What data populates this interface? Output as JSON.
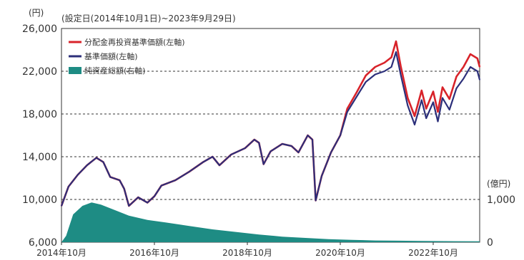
{
  "chart_data": {
    "type": "line",
    "subtitle": "(設定日(2014年10月1日)~2023年9月29日)",
    "left_axis": {
      "unit_label": "(円)",
      "ylim": [
        6000,
        26000
      ],
      "ticks": [
        6000,
        10000,
        14000,
        18000,
        22000,
        26000
      ],
      "tick_labels": [
        "6,000",
        "10,000",
        "14,000",
        "18,000",
        "22,000",
        "26,000"
      ]
    },
    "right_axis": {
      "unit_label": "(億円)",
      "ticks": [
        0,
        1000
      ],
      "tick_labels": [
        "0",
        "1,000"
      ]
    },
    "x_axis": {
      "tick_labels": [
        "2014年10月",
        "2016年10月",
        "2018年10月",
        "2020年10月",
        "2022年10月"
      ],
      "tick_x": [
        2014.75,
        2016.75,
        2018.75,
        2020.75,
        2022.75
      ],
      "xlim": [
        2014.75,
        2023.75
      ]
    },
    "grid": "horizontal dashed at 10,000 / 14,000 / 18,000 / 22,000",
    "legend_placement": "top-left",
    "series": [
      {
        "name": "分配金再投資基準価額(左軸)",
        "axis": "left",
        "color": "#d8232a",
        "points": [
          [
            2014.75,
            9400
          ],
          [
            2014.9,
            11200
          ],
          [
            2015.1,
            12300
          ],
          [
            2015.3,
            13200
          ],
          [
            2015.5,
            13900
          ],
          [
            2015.65,
            13500
          ],
          [
            2015.8,
            12100
          ],
          [
            2016.0,
            11800
          ],
          [
            2016.1,
            11000
          ],
          [
            2016.2,
            9400
          ],
          [
            2016.4,
            10200
          ],
          [
            2016.6,
            9700
          ],
          [
            2016.75,
            10300
          ],
          [
            2016.9,
            11300
          ],
          [
            2017.2,
            11800
          ],
          [
            2017.5,
            12600
          ],
          [
            2017.8,
            13500
          ],
          [
            2018.0,
            14000
          ],
          [
            2018.15,
            13200
          ],
          [
            2018.4,
            14200
          ],
          [
            2018.7,
            14800
          ],
          [
            2018.9,
            15600
          ],
          [
            2019.0,
            15300
          ],
          [
            2019.1,
            13300
          ],
          [
            2019.25,
            14500
          ],
          [
            2019.5,
            15200
          ],
          [
            2019.7,
            15000
          ],
          [
            2019.85,
            14400
          ],
          [
            2020.05,
            16000
          ],
          [
            2020.15,
            15600
          ],
          [
            2020.22,
            9900
          ],
          [
            2020.35,
            12200
          ],
          [
            2020.55,
            14400
          ],
          [
            2020.75,
            16000
          ],
          [
            2020.9,
            18500
          ],
          [
            2021.1,
            20000
          ],
          [
            2021.3,
            21600
          ],
          [
            2021.5,
            22400
          ],
          [
            2021.7,
            22800
          ],
          [
            2021.85,
            23300
          ],
          [
            2021.95,
            24800
          ],
          [
            2022.05,
            22500
          ],
          [
            2022.2,
            19500
          ],
          [
            2022.35,
            17800
          ],
          [
            2022.5,
            20200
          ],
          [
            2022.6,
            18500
          ],
          [
            2022.75,
            20100
          ],
          [
            2022.85,
            18200
          ],
          [
            2022.95,
            20500
          ],
          [
            2023.1,
            19400
          ],
          [
            2023.25,
            21500
          ],
          [
            2023.4,
            22400
          ],
          [
            2023.55,
            23600
          ],
          [
            2023.7,
            23200
          ],
          [
            2023.75,
            22400
          ]
        ]
      },
      {
        "name": "基準価額(左軸)",
        "axis": "left",
        "color": "#2c2f7a",
        "points": [
          [
            2014.75,
            9400
          ],
          [
            2014.9,
            11200
          ],
          [
            2015.1,
            12300
          ],
          [
            2015.3,
            13200
          ],
          [
            2015.5,
            13900
          ],
          [
            2015.65,
            13500
          ],
          [
            2015.8,
            12100
          ],
          [
            2016.0,
            11800
          ],
          [
            2016.1,
            11000
          ],
          [
            2016.2,
            9400
          ],
          [
            2016.4,
            10200
          ],
          [
            2016.6,
            9700
          ],
          [
            2016.75,
            10300
          ],
          [
            2016.9,
            11300
          ],
          [
            2017.2,
            11800
          ],
          [
            2017.5,
            12600
          ],
          [
            2017.8,
            13500
          ],
          [
            2018.0,
            14000
          ],
          [
            2018.15,
            13200
          ],
          [
            2018.4,
            14200
          ],
          [
            2018.7,
            14800
          ],
          [
            2018.9,
            15600
          ],
          [
            2019.0,
            15300
          ],
          [
            2019.1,
            13300
          ],
          [
            2019.25,
            14500
          ],
          [
            2019.5,
            15200
          ],
          [
            2019.7,
            15000
          ],
          [
            2019.85,
            14400
          ],
          [
            2020.05,
            16000
          ],
          [
            2020.15,
            15600
          ],
          [
            2020.22,
            9900
          ],
          [
            2020.35,
            12200
          ],
          [
            2020.55,
            14400
          ],
          [
            2020.75,
            16000
          ],
          [
            2020.9,
            18200
          ],
          [
            2021.1,
            19600
          ],
          [
            2021.3,
            21000
          ],
          [
            2021.5,
            21700
          ],
          [
            2021.7,
            22000
          ],
          [
            2021.85,
            22400
          ],
          [
            2021.95,
            23800
          ],
          [
            2022.05,
            21700
          ],
          [
            2022.2,
            18800
          ],
          [
            2022.35,
            17000
          ],
          [
            2022.5,
            19300
          ],
          [
            2022.6,
            17600
          ],
          [
            2022.75,
            19100
          ],
          [
            2022.85,
            17300
          ],
          [
            2022.95,
            19500
          ],
          [
            2023.1,
            18400
          ],
          [
            2023.25,
            20400
          ],
          [
            2023.4,
            21300
          ],
          [
            2023.55,
            22400
          ],
          [
            2023.7,
            22000
          ],
          [
            2023.75,
            21200
          ]
        ]
      },
      {
        "name": "純資産総額(右軸)",
        "axis": "right",
        "type": "area",
        "color": "#1e8c84",
        "points": [
          [
            2014.75,
            0
          ],
          [
            2014.85,
            150
          ],
          [
            2015.0,
            650
          ],
          [
            2015.2,
            850
          ],
          [
            2015.4,
            930
          ],
          [
            2015.6,
            880
          ],
          [
            2015.9,
            750
          ],
          [
            2016.2,
            620
          ],
          [
            2016.6,
            520
          ],
          [
            2017.0,
            460
          ],
          [
            2017.5,
            380
          ],
          [
            2018.0,
            300
          ],
          [
            2018.5,
            240
          ],
          [
            2019.0,
            180
          ],
          [
            2019.5,
            130
          ],
          [
            2020.0,
            100
          ],
          [
            2020.5,
            70
          ],
          [
            2021.0,
            55
          ],
          [
            2021.5,
            40
          ],
          [
            2022.0,
            35
          ],
          [
            2022.5,
            30
          ],
          [
            2023.0,
            25
          ],
          [
            2023.75,
            20
          ]
        ]
      }
    ]
  }
}
